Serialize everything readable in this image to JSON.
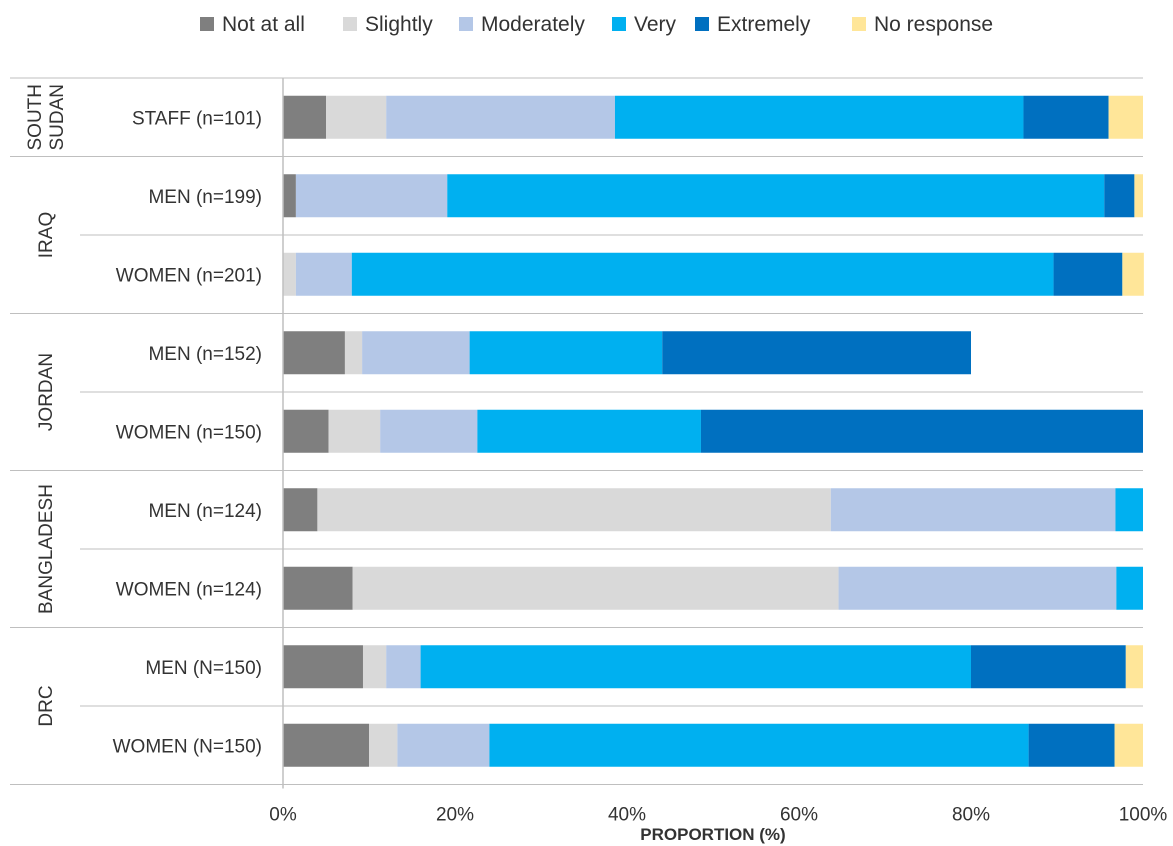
{
  "chart_data": {
    "type": "bar",
    "orientation": "horizontal",
    "stacked": true,
    "legend_position": "top",
    "grid": false,
    "xlabel": "PROPORTION (%)",
    "xlim": [
      0,
      100
    ],
    "x_ticks": [
      "0%",
      "20%",
      "40%",
      "60%",
      "80%",
      "100%"
    ],
    "series": [
      {
        "name": "Not at all",
        "color": "#7f7f7f"
      },
      {
        "name": "Slightly",
        "color": "#d9d9d9"
      },
      {
        "name": "Moderately",
        "color": "#b4c7e7"
      },
      {
        "name": "Very",
        "color": "#00b0f0"
      },
      {
        "name": "Extremely",
        "color": "#0070c0"
      },
      {
        "name": "No response",
        "color": "#ffe699"
      }
    ],
    "groups": [
      {
        "name": [
          "SOUTH",
          "SUDAN"
        ],
        "rows": [
          {
            "label": "STAFF (n=101)",
            "values": [
              5,
              7,
              26.6,
              47.5,
              9.9,
              4
            ]
          }
        ]
      },
      {
        "name": [
          "IRAQ"
        ],
        "rows": [
          {
            "label": "MEN (n=199)",
            "values": [
              1.5,
              0,
              17.6,
              76.4,
              3.5,
              1
            ]
          },
          {
            "label": "WOMEN (n=201)",
            "values": [
              0,
              1.5,
              6.5,
              81.6,
              8,
              2.5
            ]
          }
        ]
      },
      {
        "name": [
          "JORDAN"
        ],
        "rows": [
          {
            "label": "MEN (n=152)",
            "values": [
              7.2,
              2,
              12.5,
              22.4,
              35.9,
              0
            ]
          },
          {
            "label": "WOMEN (n=150)",
            "values": [
              5.3,
              6,
              11.3,
              26,
              51.4,
              0
            ]
          }
        ]
      },
      {
        "name": [
          "BANGLADESH"
        ],
        "rows": [
          {
            "label": "MEN (n=124)",
            "values": [
              4,
              59.7,
              33.1,
              3.2,
              0,
              0
            ]
          },
          {
            "label": "WOMEN (n=124)",
            "values": [
              8.1,
              56.5,
              32.3,
              3.1,
              0,
              0
            ]
          }
        ]
      },
      {
        "name": [
          "DRC"
        ],
        "rows": [
          {
            "label": "MEN (N=150)",
            "values": [
              9.3,
              2.7,
              4,
              64,
              18,
              2
            ]
          },
          {
            "label": "WOMEN (N=150)",
            "values": [
              10,
              3.3,
              10.7,
              62.7,
              10,
              3.3
            ]
          }
        ]
      }
    ]
  }
}
